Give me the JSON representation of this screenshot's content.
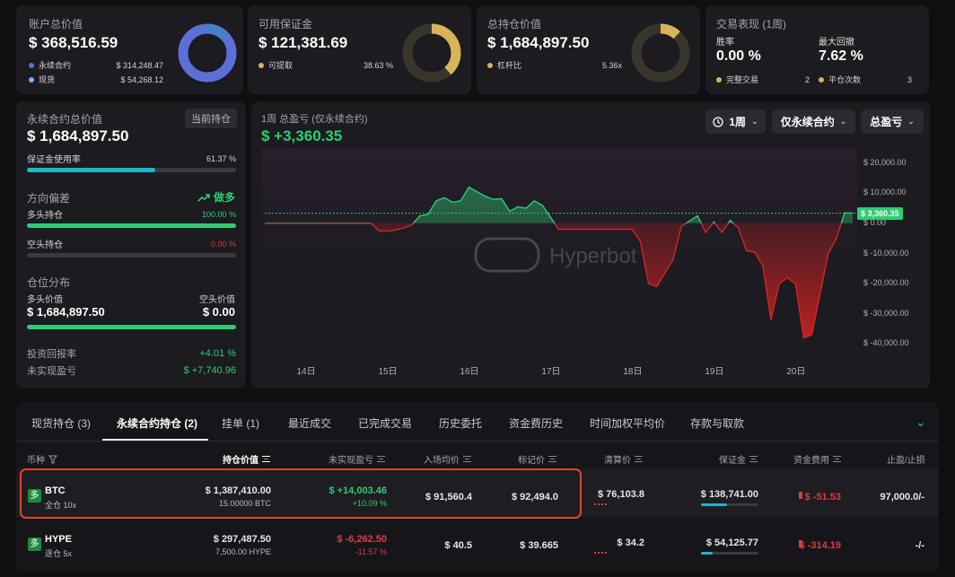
{
  "summary": {
    "account": {
      "label": "账户总价值",
      "value": "$ 368,516.59",
      "items": [
        {
          "name": "永续合约",
          "value": "$ 314,248.47"
        },
        {
          "name": "现货",
          "value": "$ 54,268.12"
        }
      ],
      "colors": [
        "#5b6fd6",
        "#4a7ecb"
      ]
    },
    "margin": {
      "label": "可用保证金",
      "value": "$ 121,381.69",
      "item_name": "可提取",
      "item_value": "38.63 %",
      "fraction": 0.3863,
      "color": "#d8b35a"
    },
    "holdings": {
      "label": "总持仓价值",
      "value": "$ 1,684,897.50",
      "item_name": "杠杆比",
      "item_value": "5.36x",
      "color": "#d8b35a"
    },
    "performance": {
      "label": "交易表现 (1周)",
      "winrate_label": "胜率",
      "winrate": "0.00 %",
      "drawdown_label": "最大回撤",
      "drawdown": "7.62 %",
      "closed_label": "完整交易",
      "closed_value": "2",
      "flat_label": "平仓次数",
      "flat_value": "3"
    }
  },
  "left": {
    "title": "永续合约总价值",
    "badge": "当前持仓",
    "value": "$ 1,684,897.50",
    "margin_usage_label": "保证金使用率",
    "margin_usage": "61.37 %",
    "margin_usage_frac": 0.6137,
    "bias_label": "方向偏差",
    "bias_value": "做多",
    "long_label": "多头持仓",
    "long_pct": "100.00 %",
    "long_frac": 1.0,
    "short_label": "空头持仓",
    "short_pct": "0.00 %",
    "short_frac": 0.0,
    "dist_label": "仓位分布",
    "long_value_label": "多头价值",
    "short_value_label": "空头价值",
    "long_value": "$ 1,684,897.50",
    "short_value": "$ 0.00",
    "roi_label": "投资回报率",
    "roi": "+4.01 %",
    "upnl_label": "未实现盈亏",
    "upnl": "$ +7,740.96"
  },
  "chart_header": {
    "title": "1周 总盈亏 (仅永续合约)",
    "value": "$ +3,360.35",
    "period": "1周",
    "filter": "仅永续合约",
    "metric": "总盈亏",
    "watermark": "Hyperbot",
    "last_label": "$ 3,360.35"
  },
  "chart_data": {
    "type": "line",
    "ylabel": "",
    "ylim": [
      -45000,
      25000
    ],
    "yticks": [
      "$ 20,000.00",
      "$ 10,000.00",
      "$ 0.00",
      "$ -10,000.00",
      "$ -20,000.00",
      "$ -30,000.00",
      "$ -40,000.00"
    ],
    "ytick_values": [
      20000,
      10000,
      0,
      -10000,
      -20000,
      -30000,
      -40000
    ],
    "xticks": [
      "14日",
      "15日",
      "16日",
      "17日",
      "18日",
      "19日",
      "20日"
    ],
    "xtick_positions": [
      0.5,
      1.5,
      2.5,
      3.5,
      4.5,
      5.5,
      6.5
    ],
    "baseline": 0,
    "reference": 3360.35,
    "points": [
      [
        0,
        0
      ],
      [
        1.0,
        0
      ],
      [
        1.3,
        0
      ],
      [
        1.4,
        -2500
      ],
      [
        1.55,
        -2500
      ],
      [
        1.7,
        -1500
      ],
      [
        1.8,
        -500
      ],
      [
        1.9,
        2500
      ],
      [
        2.0,
        3000
      ],
      [
        2.1,
        7500
      ],
      [
        2.2,
        8500
      ],
      [
        2.3,
        7000
      ],
      [
        2.4,
        7500
      ],
      [
        2.5,
        12000
      ],
      [
        2.6,
        10500
      ],
      [
        2.7,
        9000
      ],
      [
        2.8,
        8000
      ],
      [
        2.9,
        8200
      ],
      [
        3.0,
        4000
      ],
      [
        3.1,
        5500
      ],
      [
        3.2,
        5000
      ],
      [
        3.3,
        7500
      ],
      [
        3.4,
        6000
      ],
      [
        3.5,
        2000
      ],
      [
        3.6,
        -2000
      ],
      [
        4.2,
        -2000
      ],
      [
        4.5,
        -2000
      ],
      [
        4.6,
        -6000
      ],
      [
        4.7,
        -20000
      ],
      [
        4.8,
        -21000
      ],
      [
        5.0,
        -12000
      ],
      [
        5.1,
        -1000
      ],
      [
        5.3,
        2500
      ],
      [
        5.4,
        -3000
      ],
      [
        5.5,
        500
      ],
      [
        5.6,
        -3000
      ],
      [
        5.7,
        1000
      ],
      [
        5.8,
        -1500
      ],
      [
        5.9,
        -9000
      ],
      [
        6.0,
        -9500
      ],
      [
        6.1,
        -14000
      ],
      [
        6.2,
        -32000
      ],
      [
        6.3,
        -20000
      ],
      [
        6.4,
        -18000
      ],
      [
        6.5,
        -20000
      ],
      [
        6.6,
        -38000
      ],
      [
        6.7,
        -37000
      ],
      [
        6.9,
        -10000
      ],
      [
        7.0,
        -5000
      ],
      [
        7.1,
        3500
      ],
      [
        7.2,
        3360
      ]
    ]
  },
  "tabs": [
    "现货持仓 (3)",
    "永续合约持仓 (2)",
    "挂单 (1)",
    "最近成交",
    "已完成交易",
    "历史委托",
    "资金费历史",
    "时间加权平均价",
    "存款与取款"
  ],
  "table": {
    "headers": [
      "币种",
      "持仓价值",
      "未实现盈亏",
      "入场均价",
      "标记价",
      "清算价",
      "保证金",
      "资金费用",
      "止盈/止损"
    ],
    "rows": [
      {
        "badge": "多",
        "coin": "BTC",
        "mode": "全仓 10x",
        "value": "$ 1,387,410.00",
        "size": "15.00000 BTC",
        "pnl": "$ +14,003.46",
        "pnl_pct": "+10.09 %",
        "entry": "$ 91,560.4",
        "mark": "$ 92,494.0",
        "liq": "$ 76,103.8",
        "margin": "$ 138,741.00",
        "margin_frac": 0.45,
        "funding": "$ -51.53",
        "tpsl": "97,000.0/-"
      },
      {
        "badge": "多",
        "coin": "HYPE",
        "mode": "逐仓 5x",
        "value": "$ 297,487.50",
        "size": "7,500.00 HYPE",
        "pnl": "$ -6,262.50",
        "pnl_pct": "-11.57 %",
        "entry": "$ 40.5",
        "mark": "$ 39.665",
        "liq": "$ 34.2",
        "margin": "$ 54,125.77",
        "margin_frac": 0.2,
        "funding": "$ -314.19",
        "tpsl": "-/-"
      }
    ]
  }
}
